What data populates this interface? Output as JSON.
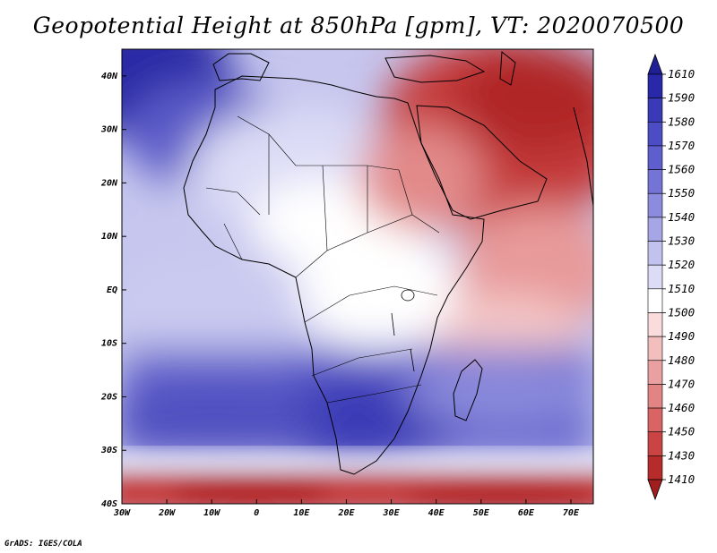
{
  "title": "Geopotential Height at 850hPa [gpm], VT: 2020070500",
  "credit": "GrADS: IGES/COLA",
  "map": {
    "variable": "Geopotential height",
    "level": "850hPa",
    "units": "gpm",
    "valid_time": "2020070500",
    "lon_range": [
      -30,
      75
    ],
    "lat_range": [
      -40,
      45
    ],
    "lon_ticks": [
      "30W",
      "20W",
      "10W",
      "0",
      "10E",
      "20E",
      "30E",
      "40E",
      "50E",
      "60E",
      "70E"
    ],
    "lat_ticks": [
      "40N",
      "30N",
      "20N",
      "10N",
      "EQ",
      "10S",
      "20S",
      "30S",
      "40S"
    ],
    "colorbar": {
      "levels": [
        "1610",
        "1590",
        "1580",
        "1570",
        "1560",
        "1550",
        "1540",
        "1530",
        "1520",
        "1510",
        "1500",
        "1490",
        "1480",
        "1470",
        "1460",
        "1450",
        "1430",
        "1410"
      ],
      "colors": [
        "#1e1e96",
        "#2828a8",
        "#3a3ab8",
        "#4c4cc4",
        "#5e5ecf",
        "#7474d6",
        "#8c8cde",
        "#a6a6e6",
        "#c2c2ef",
        "#dcdcf6",
        "#ffffff",
        "#fadcdc",
        "#f2bebe",
        "#eaa0a0",
        "#e28484",
        "#d96464",
        "#ca4444",
        "#b82b2b",
        "#a01e1e"
      ]
    }
  }
}
